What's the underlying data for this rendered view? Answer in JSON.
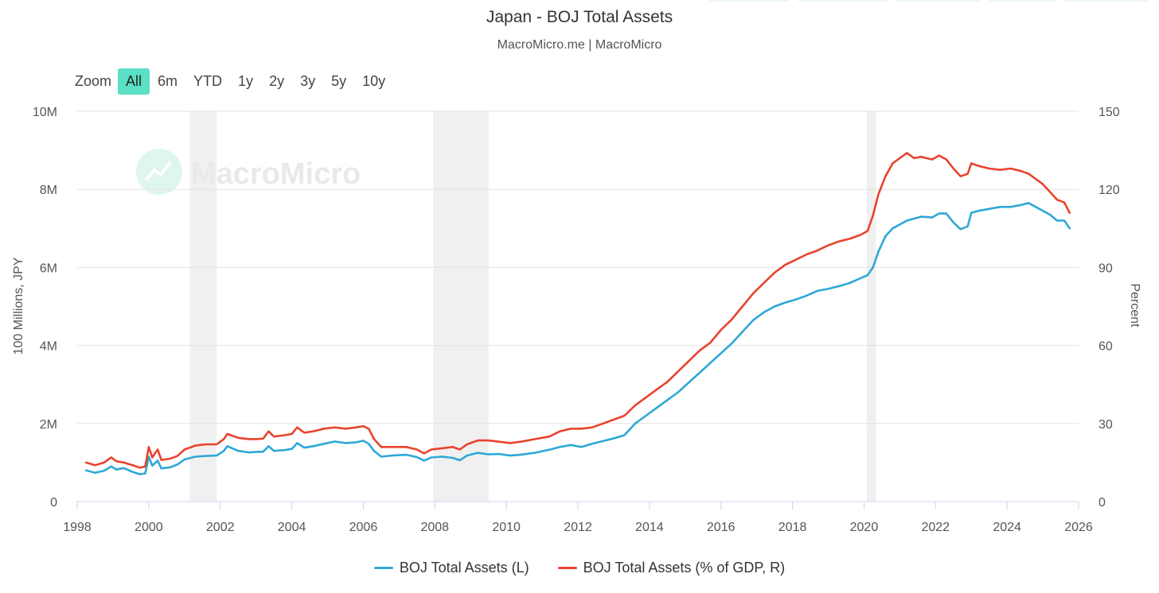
{
  "chart_data": {
    "type": "line",
    "title": "Japan - BOJ Total Assets",
    "subtitle": "MacroMicro.me | MacroMicro",
    "watermark": "MacroMicro",
    "zoom": {
      "label": "Zoom",
      "options": [
        "All",
        "6m",
        "YTD",
        "1y",
        "2y",
        "3y",
        "5y",
        "10y"
      ],
      "selected": "All"
    },
    "xlim": [
      1998,
      2026
    ],
    "x_ticks": [
      "1998",
      "2000",
      "2002",
      "2004",
      "2006",
      "2008",
      "2010",
      "2012",
      "2014",
      "2016",
      "2018",
      "2020",
      "2022",
      "2024",
      "2026"
    ],
    "y_left": {
      "label": "100 Millions, JPY",
      "lim": [
        0,
        10000000
      ],
      "ticks": [
        {
          "v": 0,
          "t": "0"
        },
        {
          "v": 2000000,
          "t": "2M"
        },
        {
          "v": 4000000,
          "t": "4M"
        },
        {
          "v": 6000000,
          "t": "6M"
        },
        {
          "v": 8000000,
          "t": "8M"
        },
        {
          "v": 10000000,
          "t": "10M"
        }
      ]
    },
    "y_right": {
      "label": "Percent",
      "lim": [
        0,
        150
      ],
      "ticks": [
        {
          "v": 0,
          "t": "0"
        },
        {
          "v": 30,
          "t": "30"
        },
        {
          "v": 60,
          "t": "60"
        },
        {
          "v": 90,
          "t": "90"
        },
        {
          "v": 120,
          "t": "120"
        },
        {
          "v": 150,
          "t": "150"
        }
      ]
    },
    "recessions": [
      [
        2001.15,
        2001.9
      ],
      [
        2007.95,
        2009.5
      ],
      [
        2020.08,
        2020.33
      ]
    ],
    "series": [
      {
        "name": "BOJ Total Assets (L)",
        "axis": "left",
        "color": "#2ea8d6",
        "points": [
          [
            1998.25,
            800000
          ],
          [
            1998.5,
            740000
          ],
          [
            1998.75,
            790000
          ],
          [
            1998.95,
            900000
          ],
          [
            1999.1,
            820000
          ],
          [
            1999.3,
            860000
          ],
          [
            1999.55,
            760000
          ],
          [
            1999.75,
            700000
          ],
          [
            1999.9,
            720000
          ],
          [
            2000.0,
            1150000
          ],
          [
            2000.1,
            920000
          ],
          [
            2000.25,
            1050000
          ],
          [
            2000.35,
            850000
          ],
          [
            2000.6,
            880000
          ],
          [
            2000.8,
            950000
          ],
          [
            2001.0,
            1080000
          ],
          [
            2001.3,
            1150000
          ],
          [
            2001.6,
            1170000
          ],
          [
            2001.9,
            1180000
          ],
          [
            2002.1,
            1300000
          ],
          [
            2002.2,
            1420000
          ],
          [
            2002.5,
            1300000
          ],
          [
            2002.8,
            1260000
          ],
          [
            2003.0,
            1270000
          ],
          [
            2003.2,
            1280000
          ],
          [
            2003.35,
            1420000
          ],
          [
            2003.5,
            1300000
          ],
          [
            2003.8,
            1320000
          ],
          [
            2004.0,
            1350000
          ],
          [
            2004.15,
            1500000
          ],
          [
            2004.35,
            1380000
          ],
          [
            2004.6,
            1420000
          ],
          [
            2004.9,
            1480000
          ],
          [
            2005.2,
            1540000
          ],
          [
            2005.5,
            1500000
          ],
          [
            2005.8,
            1520000
          ],
          [
            2006.0,
            1560000
          ],
          [
            2006.15,
            1480000
          ],
          [
            2006.3,
            1300000
          ],
          [
            2006.5,
            1150000
          ],
          [
            2006.8,
            1180000
          ],
          [
            2007.2,
            1200000
          ],
          [
            2007.5,
            1140000
          ],
          [
            2007.7,
            1050000
          ],
          [
            2007.9,
            1130000
          ],
          [
            2008.2,
            1150000
          ],
          [
            2008.5,
            1120000
          ],
          [
            2008.7,
            1060000
          ],
          [
            2008.9,
            1180000
          ],
          [
            2009.2,
            1250000
          ],
          [
            2009.5,
            1210000
          ],
          [
            2009.8,
            1220000
          ],
          [
            2010.1,
            1180000
          ],
          [
            2010.4,
            1200000
          ],
          [
            2010.8,
            1250000
          ],
          [
            2011.2,
            1330000
          ],
          [
            2011.5,
            1400000
          ],
          [
            2011.8,
            1450000
          ],
          [
            2012.1,
            1400000
          ],
          [
            2012.4,
            1480000
          ],
          [
            2012.7,
            1550000
          ],
          [
            2013.0,
            1620000
          ],
          [
            2013.3,
            1700000
          ],
          [
            2013.6,
            2000000
          ],
          [
            2013.9,
            2200000
          ],
          [
            2014.2,
            2400000
          ],
          [
            2014.5,
            2600000
          ],
          [
            2014.8,
            2800000
          ],
          [
            2015.1,
            3050000
          ],
          [
            2015.4,
            3300000
          ],
          [
            2015.7,
            3550000
          ],
          [
            2016.0,
            3800000
          ],
          [
            2016.3,
            4050000
          ],
          [
            2016.6,
            4350000
          ],
          [
            2016.9,
            4650000
          ],
          [
            2017.2,
            4850000
          ],
          [
            2017.5,
            5000000
          ],
          [
            2017.8,
            5100000
          ],
          [
            2018.1,
            5180000
          ],
          [
            2018.4,
            5280000
          ],
          [
            2018.7,
            5400000
          ],
          [
            2019.0,
            5450000
          ],
          [
            2019.3,
            5520000
          ],
          [
            2019.6,
            5600000
          ],
          [
            2019.9,
            5720000
          ],
          [
            2020.1,
            5800000
          ],
          [
            2020.25,
            6000000
          ],
          [
            2020.4,
            6400000
          ],
          [
            2020.6,
            6800000
          ],
          [
            2020.8,
            7000000
          ],
          [
            2021.0,
            7100000
          ],
          [
            2021.2,
            7200000
          ],
          [
            2021.4,
            7250000
          ],
          [
            2021.6,
            7300000
          ],
          [
            2021.9,
            7280000
          ],
          [
            2022.1,
            7380000
          ],
          [
            2022.3,
            7380000
          ],
          [
            2022.5,
            7150000
          ],
          [
            2022.7,
            6980000
          ],
          [
            2022.9,
            7050000
          ],
          [
            2023.0,
            7400000
          ],
          [
            2023.2,
            7450000
          ],
          [
            2023.5,
            7500000
          ],
          [
            2023.8,
            7550000
          ],
          [
            2024.1,
            7550000
          ],
          [
            2024.4,
            7600000
          ],
          [
            2024.6,
            7650000
          ],
          [
            2024.8,
            7550000
          ],
          [
            2025.0,
            7450000
          ],
          [
            2025.2,
            7350000
          ],
          [
            2025.4,
            7200000
          ],
          [
            2025.6,
            7200000
          ],
          [
            2025.75,
            7000000
          ]
        ]
      },
      {
        "name": "BOJ Total Assets (% of GDP, R)",
        "axis": "right",
        "color": "#e8432d",
        "points": [
          [
            1998.25,
            15
          ],
          [
            1998.5,
            14
          ],
          [
            1998.75,
            15
          ],
          [
            1998.95,
            17
          ],
          [
            1999.1,
            15.5
          ],
          [
            1999.3,
            15
          ],
          [
            1999.55,
            14
          ],
          [
            1999.75,
            13
          ],
          [
            1999.9,
            13.5
          ],
          [
            2000.0,
            21
          ],
          [
            2000.1,
            17
          ],
          [
            2000.25,
            20
          ],
          [
            2000.35,
            16
          ],
          [
            2000.6,
            16.5
          ],
          [
            2000.8,
            17.5
          ],
          [
            2001.0,
            20
          ],
          [
            2001.3,
            21.5
          ],
          [
            2001.6,
            22
          ],
          [
            2001.9,
            22
          ],
          [
            2002.1,
            24
          ],
          [
            2002.2,
            26
          ],
          [
            2002.5,
            24.5
          ],
          [
            2002.8,
            24
          ],
          [
            2003.0,
            24
          ],
          [
            2003.2,
            24.2
          ],
          [
            2003.35,
            27
          ],
          [
            2003.5,
            25
          ],
          [
            2003.8,
            25.5
          ],
          [
            2004.0,
            26
          ],
          [
            2004.15,
            28.5
          ],
          [
            2004.35,
            26.5
          ],
          [
            2004.6,
            27
          ],
          [
            2004.9,
            28
          ],
          [
            2005.2,
            28.5
          ],
          [
            2005.5,
            28
          ],
          [
            2005.8,
            28.5
          ],
          [
            2006.0,
            29
          ],
          [
            2006.15,
            28
          ],
          [
            2006.3,
            24
          ],
          [
            2006.5,
            21
          ],
          [
            2006.8,
            21
          ],
          [
            2007.2,
            21
          ],
          [
            2007.5,
            20
          ],
          [
            2007.7,
            18.5
          ],
          [
            2007.9,
            20
          ],
          [
            2008.2,
            20.5
          ],
          [
            2008.5,
            21
          ],
          [
            2008.7,
            20
          ],
          [
            2008.9,
            22
          ],
          [
            2009.2,
            23.5
          ],
          [
            2009.5,
            23.5
          ],
          [
            2009.8,
            23
          ],
          [
            2010.1,
            22.5
          ],
          [
            2010.4,
            23
          ],
          [
            2010.8,
            24
          ],
          [
            2011.2,
            25
          ],
          [
            2011.5,
            27
          ],
          [
            2011.8,
            28
          ],
          [
            2012.1,
            28
          ],
          [
            2012.4,
            28.5
          ],
          [
            2012.7,
            30
          ],
          [
            2013.0,
            31.5
          ],
          [
            2013.3,
            33
          ],
          [
            2013.6,
            37
          ],
          [
            2013.9,
            40
          ],
          [
            2014.2,
            43
          ],
          [
            2014.5,
            46
          ],
          [
            2014.8,
            50
          ],
          [
            2015.1,
            54
          ],
          [
            2015.4,
            58
          ],
          [
            2015.7,
            61
          ],
          [
            2016.0,
            66
          ],
          [
            2016.3,
            70
          ],
          [
            2016.6,
            75
          ],
          [
            2016.9,
            80
          ],
          [
            2017.2,
            84
          ],
          [
            2017.5,
            88
          ],
          [
            2017.8,
            91
          ],
          [
            2018.1,
            93
          ],
          [
            2018.4,
            95
          ],
          [
            2018.7,
            96.5
          ],
          [
            2019.0,
            98.5
          ],
          [
            2019.3,
            100
          ],
          [
            2019.6,
            101
          ],
          [
            2019.9,
            102.5
          ],
          [
            2020.1,
            104
          ],
          [
            2020.25,
            110
          ],
          [
            2020.4,
            118
          ],
          [
            2020.6,
            125
          ],
          [
            2020.8,
            130
          ],
          [
            2021.0,
            132
          ],
          [
            2021.2,
            134
          ],
          [
            2021.4,
            132
          ],
          [
            2021.6,
            132.5
          ],
          [
            2021.9,
            131.5
          ],
          [
            2022.1,
            133
          ],
          [
            2022.3,
            131.5
          ],
          [
            2022.5,
            128
          ],
          [
            2022.7,
            125
          ],
          [
            2022.9,
            126
          ],
          [
            2023.0,
            130
          ],
          [
            2023.2,
            129
          ],
          [
            2023.5,
            128
          ],
          [
            2023.8,
            127.5
          ],
          [
            2024.1,
            128
          ],
          [
            2024.4,
            127
          ],
          [
            2024.6,
            126
          ],
          [
            2024.8,
            124
          ],
          [
            2025.0,
            122
          ],
          [
            2025.2,
            119
          ],
          [
            2025.4,
            116
          ],
          [
            2025.6,
            115
          ],
          [
            2025.75,
            111
          ]
        ]
      }
    ]
  }
}
